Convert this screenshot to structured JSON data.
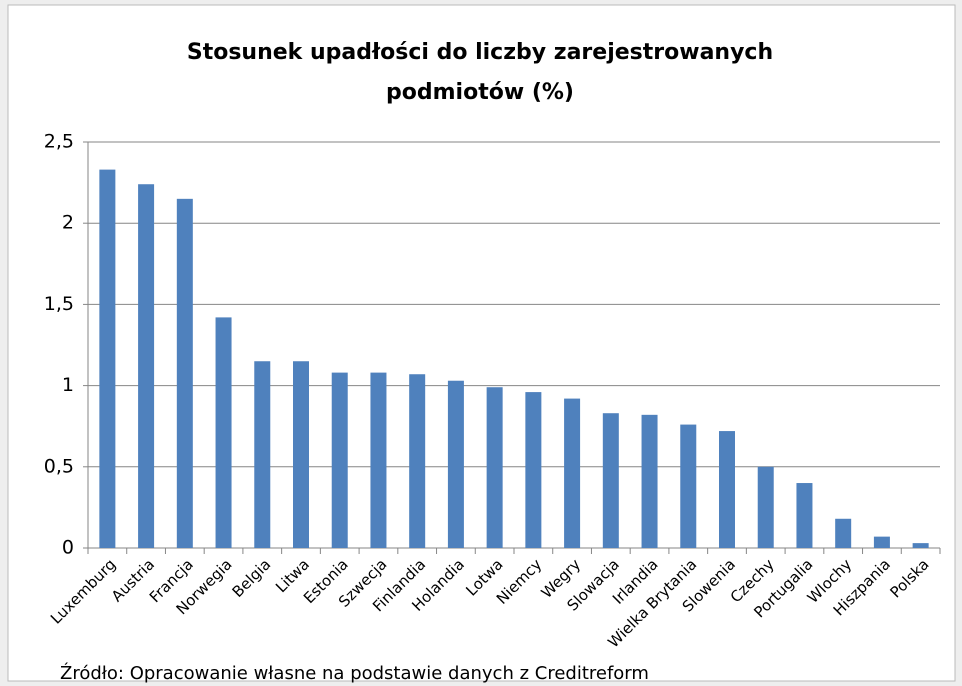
{
  "chart_data": {
    "type": "bar",
    "title": "Stosunek upadłości do liczby zarejestrowanych podmiotów (%)",
    "categories": [
      "Luxemburg",
      "Austria",
      "Francja",
      "Norwegia",
      "Belgia",
      "Litwa",
      "Estonia",
      "Szwecja",
      "Finlandia",
      "Holandia",
      "Lotwa",
      "Niemcy",
      "Wegry",
      "Slowacja",
      "Irlandia",
      "Wielka Brytania",
      "Slowenia",
      "Czechy",
      "Portugalia",
      "Wlochy",
      "Hiszpania",
      "Polska"
    ],
    "values": [
      2.33,
      2.24,
      2.15,
      1.42,
      1.15,
      1.15,
      1.08,
      1.08,
      1.07,
      1.03,
      0.99,
      0.96,
      0.92,
      0.83,
      0.82,
      0.76,
      0.72,
      0.5,
      0.4,
      0.18,
      0.07,
      0.03
    ],
    "color": "#4f81bd",
    "ylim": [
      0,
      2.5
    ],
    "yticks": [
      0,
      {
        "value": 0.5,
        "label": "0,5"
      },
      1,
      {
        "value": 1.5,
        "label": "1,5"
      },
      2,
      {
        "value": 2.5,
        "label": "2,5"
      }
    ],
    "grid": true,
    "source": "Źródło: Opracowanie własne na podstawie danych z Creditreform"
  }
}
